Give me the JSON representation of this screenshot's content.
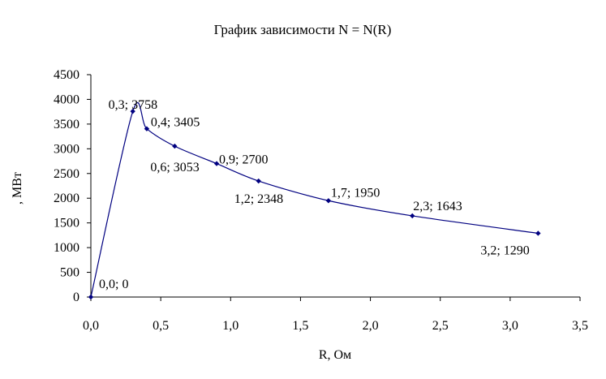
{
  "chart_data": {
    "type": "scatter",
    "title": "График зависимости N = N(R)",
    "xlabel": "R, Ом",
    "ylabel": ", МВт",
    "xlim": [
      0,
      3.5
    ],
    "ylim": [
      0,
      4500
    ],
    "xticks": [
      "0,0",
      "0,5",
      "1,0",
      "1,5",
      "2,0",
      "2,5",
      "3,0",
      "3,5"
    ],
    "yticks": [
      "0",
      "500",
      "1000",
      "1500",
      "2000",
      "2500",
      "3000",
      "3500",
      "4000",
      "4500"
    ],
    "grid": false,
    "legend": "none",
    "series_color": "#000080",
    "series": [
      {
        "x": [
          0.0,
          0.3,
          0.4,
          0.6,
          0.9,
          1.2,
          1.7,
          2.3,
          3.2
        ],
        "y": [
          0,
          3758,
          3405,
          3053,
          2700,
          2348,
          1950,
          1643,
          1290
        ]
      }
    ],
    "data_labels": [
      "0,0; 0",
      "0,3; 3758",
      "0,4; 3405",
      "0,6; 3053",
      "0,9; 2700",
      "1,2; 2348",
      "1,7; 1950",
      "2,3; 1643",
      "3,2; 1290"
    ]
  }
}
